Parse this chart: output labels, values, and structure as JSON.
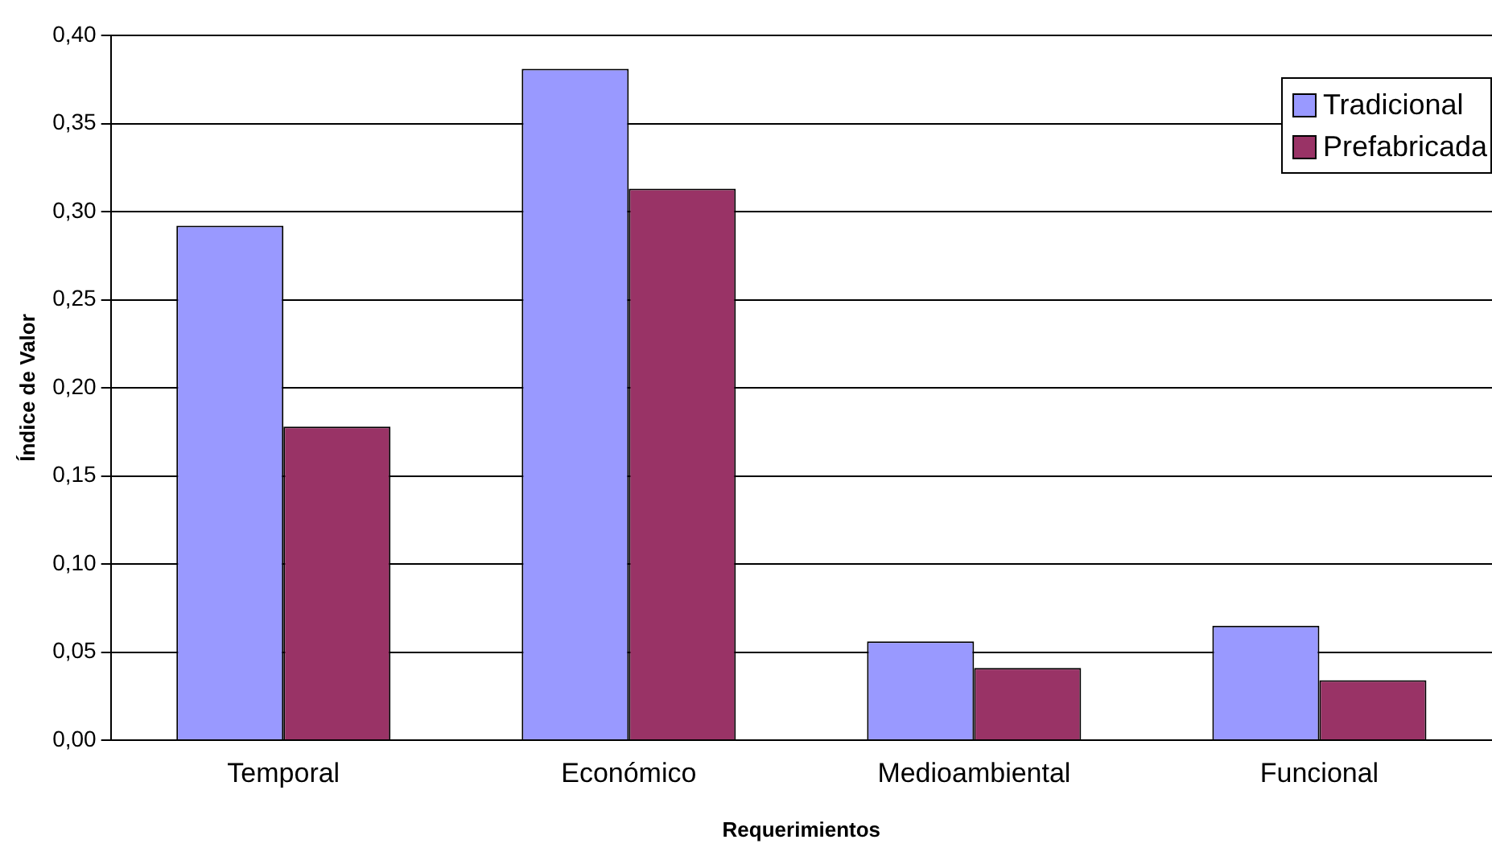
{
  "chart_data": {
    "type": "bar",
    "xlabel": "Requerimientos",
    "ylabel": "Índice de Valor",
    "categories": [
      "Temporal",
      "Económico",
      "Medioambiental",
      "Funcional"
    ],
    "series": [
      {
        "name": "Tradicional",
        "color": "#9999ff",
        "values": [
          0.292,
          0.381,
          0.056,
          0.065
        ]
      },
      {
        "name": "Prefabricada",
        "color": "#993366",
        "values": [
          0.178,
          0.313,
          0.041,
          0.034
        ]
      }
    ],
    "ylim": [
      0,
      0.4
    ],
    "yticks": [
      {
        "value": 0,
        "label": "0,00"
      },
      {
        "value": 0.05,
        "label": "0,05"
      },
      {
        "value": 0.1,
        "label": "0,10"
      },
      {
        "value": 0.15,
        "label": "0,15"
      },
      {
        "value": 0.2,
        "label": "0,20"
      },
      {
        "value": 0.25,
        "label": "0,25"
      },
      {
        "value": 0.3,
        "label": "0,30"
      },
      {
        "value": 0.35,
        "label": "0,35"
      },
      {
        "value": 0.4,
        "label": "0,40"
      }
    ],
    "grid": "y",
    "legend": "top right"
  }
}
